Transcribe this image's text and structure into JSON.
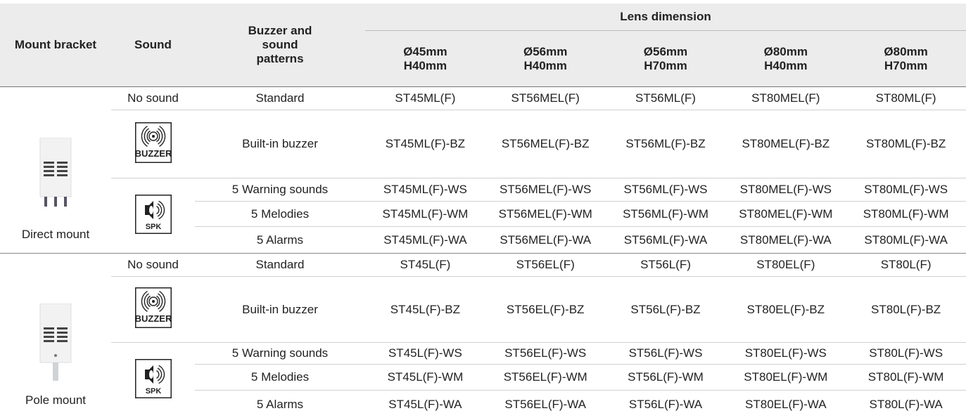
{
  "header": {
    "mount_bracket": "Mount bracket",
    "sound": "Sound",
    "patterns": "Buzzer and sound patterns",
    "lens_dimension": "Lens dimension",
    "lenses": [
      {
        "diameter": "Ø45mm",
        "height": "H40mm"
      },
      {
        "diameter": "Ø56mm",
        "height": "H40mm"
      },
      {
        "diameter": "Ø56mm",
        "height": "H70mm"
      },
      {
        "diameter": "Ø80mm",
        "height": "H40mm"
      },
      {
        "diameter": "Ø80mm",
        "height": "H70mm"
      }
    ]
  },
  "groups": [
    {
      "mount": "Direct mount",
      "sounds": [
        {
          "label": "No sound",
          "patterns": [
            {
              "name": "Standard",
              "models": [
                "ST45ML(F)",
                "ST56MEL(F)",
                "ST56ML(F)",
                "ST80MEL(F)",
                "ST80ML(F)"
              ]
            }
          ]
        },
        {
          "icon": "BUZZER",
          "patterns": [
            {
              "name": "Built-in buzzer",
              "models": [
                "ST45ML(F)-BZ",
                "ST56MEL(F)-BZ",
                "ST56ML(F)-BZ",
                "ST80MEL(F)-BZ",
                "ST80ML(F)-BZ"
              ]
            }
          ]
        },
        {
          "icon": "SPK",
          "patterns": [
            {
              "name": "5 Warning sounds",
              "models": [
                "ST45ML(F)-WS",
                "ST56MEL(F)-WS",
                "ST56ML(F)-WS",
                "ST80MEL(F)-WS",
                "ST80ML(F)-WS"
              ]
            },
            {
              "name": "5 Melodies",
              "models": [
                "ST45ML(F)-WM",
                "ST56MEL(F)-WM",
                "ST56ML(F)-WM",
                "ST80MEL(F)-WM",
                "ST80ML(F)-WM"
              ]
            },
            {
              "name": "5 Alarms",
              "models": [
                "ST45ML(F)-WA",
                "ST56MEL(F)-WA",
                "ST56ML(F)-WA",
                "ST80MEL(F)-WA",
                "ST80ML(F)-WA"
              ]
            }
          ]
        }
      ]
    },
    {
      "mount": "Pole mount",
      "sounds": [
        {
          "label": "No sound",
          "patterns": [
            {
              "name": "Standard",
              "models": [
                "ST45L(F)",
                "ST56EL(F)",
                "ST56L(F)",
                "ST80EL(F)",
                "ST80L(F)"
              ]
            }
          ]
        },
        {
          "icon": "BUZZER",
          "patterns": [
            {
              "name": "Built-in buzzer",
              "models": [
                "ST45L(F)-BZ",
                "ST56EL(F)-BZ",
                "ST56L(F)-BZ",
                "ST80EL(F)-BZ",
                "ST80L(F)-BZ"
              ]
            }
          ]
        },
        {
          "icon": "SPK",
          "patterns": [
            {
              "name": "5 Warning sounds",
              "models": [
                "ST45L(F)-WS",
                "ST56EL(F)-WS",
                "ST56L(F)-WS",
                "ST80EL(F)-WS",
                "ST80L(F)-WS"
              ]
            },
            {
              "name": "5 Melodies",
              "models": [
                "ST45L(F)-WM",
                "ST56EL(F)-WM",
                "ST56L(F)-WM",
                "ST80EL(F)-WM",
                "ST80L(F)-WM"
              ]
            },
            {
              "name": "5 Alarms",
              "models": [
                "ST45L(F)-WA",
                "ST56EL(F)-WA",
                "ST56L(F)-WA",
                "ST80EL(F)-WA",
                "ST80L(F)-WA"
              ]
            }
          ]
        }
      ]
    }
  ]
}
